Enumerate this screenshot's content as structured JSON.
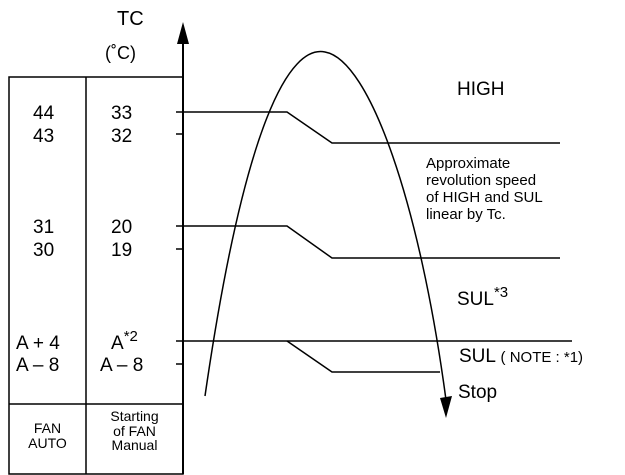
{
  "axis": {
    "label": "TC",
    "unit": "(˚C)"
  },
  "table": {
    "col1": {
      "high_values": [
        "44",
        "43"
      ],
      "sul_values": [
        "31",
        "30"
      ],
      "low_values": [
        "A + 4",
        "A – 8"
      ],
      "footer": [
        "FAN",
        "AUTO"
      ]
    },
    "col2": {
      "high_values": [
        "33",
        "32"
      ],
      "sul_values": [
        "20",
        "19"
      ],
      "low_values_base": "A",
      "low_values_sup": "*2",
      "low_value_2": "A – 8",
      "footer": [
        "Starting",
        "of FAN",
        "Manual"
      ]
    }
  },
  "labels": {
    "high": "HIGH",
    "approx": [
      "Approximate",
      "revolution speed",
      "of HIGH and SUL",
      "linear by Tc."
    ],
    "sul": "SUL",
    "sul_sup": "*3",
    "sul_note_main": "SUL",
    "sul_note_paren": "( NOTE : *1)",
    "stop": "Stop"
  },
  "colors": {
    "line": "#000000",
    "background": "#ffffff"
  }
}
